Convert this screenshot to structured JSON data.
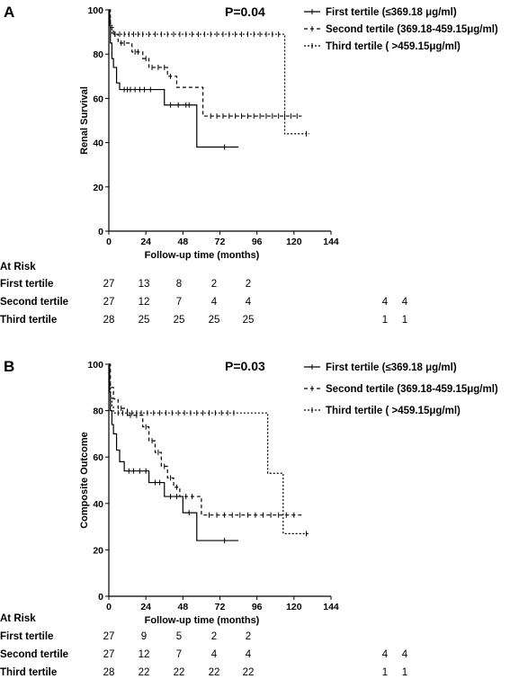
{
  "chart_data": [
    {
      "type": "line",
      "panel": "A",
      "annotation": "P=0.04",
      "xlabel": "Follow-up time  (months)",
      "ylabel": "Renal Survival",
      "xlim": [
        0,
        144
      ],
      "ylim": [
        0,
        100
      ],
      "xticks": [
        "0",
        "24",
        "48",
        "72",
        "96",
        "120",
        "144"
      ],
      "yticks": [
        "0",
        "20",
        "40",
        "60",
        "80",
        "100"
      ],
      "legend_placement": "top-right",
      "series": [
        {
          "name": "First tertile  (≤369.18 μg/ml)",
          "dash": "none",
          "steps": [
            [
              0,
              100
            ],
            [
              0.5,
              93
            ],
            [
              1,
              85
            ],
            [
              2,
              78
            ],
            [
              3,
              74
            ],
            [
              5,
              67
            ],
            [
              7,
              64
            ],
            [
              36,
              57
            ],
            [
              57,
              38
            ],
            [
              84,
              38
            ]
          ],
          "censors": [
            [
              10,
              64
            ],
            [
              12,
              64
            ],
            [
              14,
              64
            ],
            [
              17,
              64
            ],
            [
              20,
              64
            ],
            [
              23,
              64
            ],
            [
              27,
              64
            ],
            [
              40,
              57
            ],
            [
              45,
              57
            ],
            [
              50,
              57
            ],
            [
              52,
              57
            ],
            [
              75,
              38
            ]
          ]
        },
        {
          "name": "Second tertile (369.18-459.15μg/ml)",
          "dash": "4,3",
          "steps": [
            [
              0,
              100
            ],
            [
              1,
              92
            ],
            [
              3,
              89
            ],
            [
              6,
              85
            ],
            [
              15,
              81
            ],
            [
              22,
              78
            ],
            [
              26,
              74
            ],
            [
              38,
              70
            ],
            [
              44,
              65
            ],
            [
              61,
              52
            ],
            [
              125,
              52
            ]
          ],
          "censors": [
            [
              4,
              89
            ],
            [
              8,
              85
            ],
            [
              10,
              85
            ],
            [
              17,
              81
            ],
            [
              19,
              81
            ],
            [
              24,
              78
            ],
            [
              28,
              74
            ],
            [
              32,
              74
            ],
            [
              36,
              74
            ],
            [
              40,
              70
            ],
            [
              66,
              52
            ],
            [
              70,
              52
            ],
            [
              74,
              52
            ],
            [
              78,
              52
            ],
            [
              82,
              52
            ],
            [
              86,
              52
            ],
            [
              90,
              52
            ],
            [
              94,
              52
            ],
            [
              98,
              52
            ],
            [
              102,
              52
            ],
            [
              106,
              52
            ],
            [
              110,
              52
            ],
            [
              114,
              52
            ],
            [
              118,
              52
            ],
            [
              122,
              52
            ]
          ]
        },
        {
          "name": "Third tertile ( >459.15μg/ml)",
          "dash": "2,2",
          "steps": [
            [
              0,
              100
            ],
            [
              0.5,
              96
            ],
            [
              1,
              93
            ],
            [
              2,
              89
            ],
            [
              112,
              89
            ],
            [
              114,
              44
            ],
            [
              130,
              44
            ]
          ],
          "censors": [
            [
              4,
              89
            ],
            [
              7,
              89
            ],
            [
              10,
              89
            ],
            [
              13,
              89
            ],
            [
              16,
              89
            ],
            [
              19,
              89
            ],
            [
              22,
              89
            ],
            [
              26,
              89
            ],
            [
              30,
              89
            ],
            [
              34,
              89
            ],
            [
              38,
              89
            ],
            [
              42,
              89
            ],
            [
              46,
              89
            ],
            [
              50,
              89
            ],
            [
              54,
              89
            ],
            [
              58,
              89
            ],
            [
              62,
              89
            ],
            [
              66,
              89
            ],
            [
              70,
              89
            ],
            [
              74,
              89
            ],
            [
              78,
              89
            ],
            [
              82,
              89
            ],
            [
              86,
              89
            ],
            [
              90,
              89
            ],
            [
              94,
              89
            ],
            [
              98,
              89
            ],
            [
              102,
              89
            ],
            [
              106,
              89
            ],
            [
              110,
              89
            ],
            [
              128,
              44
            ]
          ]
        }
      ],
      "risk_table": {
        "title": "At Risk",
        "rows": [
          {
            "label": "First tertile",
            "values": [
              "27",
              "13",
              "8",
              "2",
              "2",
              "",
              ""
            ]
          },
          {
            "label": "Second tertile",
            "values": [
              "27",
              "12",
              "7",
              "4",
              "4",
              "4",
              "4"
            ]
          },
          {
            "label": "Third tertile",
            "values": [
              "28",
              "25",
              "25",
              "25",
              "25",
              "1",
              "1"
            ]
          }
        ]
      }
    },
    {
      "type": "line",
      "panel": "B",
      "annotation": "P=0.03",
      "xlabel": "Follow-up time  (months)",
      "ylabel": "Composite Outcome",
      "xlim": [
        0,
        144
      ],
      "ylim": [
        0,
        100
      ],
      "xticks": [
        "0",
        "24",
        "48",
        "72",
        "96",
        "120",
        "144"
      ],
      "yticks": [
        "0",
        "20",
        "40",
        "60",
        "80",
        "100"
      ],
      "legend_placement": "top-right",
      "series": [
        {
          "name": "First tertile  (≤369.18 μg/ml)",
          "dash": "none",
          "steps": [
            [
              0,
              100
            ],
            [
              0.5,
              88
            ],
            [
              1,
              80
            ],
            [
              2,
              74
            ],
            [
              3,
              70
            ],
            [
              5,
              63
            ],
            [
              7,
              58
            ],
            [
              10,
              54
            ],
            [
              26,
              49
            ],
            [
              36,
              43
            ],
            [
              48,
              36
            ],
            [
              57,
              24
            ],
            [
              84,
              24
            ]
          ],
          "censors": [
            [
              13,
              54
            ],
            [
              16,
              54
            ],
            [
              20,
              54
            ],
            [
              24,
              54
            ],
            [
              30,
              49
            ],
            [
              33,
              49
            ],
            [
              40,
              43
            ],
            [
              44,
              43
            ],
            [
              52,
              36
            ],
            [
              75,
              24
            ]
          ]
        },
        {
          "name": "Second tertile  (369.18-459.15μg/ml)",
          "dash": "4,3",
          "steps": [
            [
              0,
              100
            ],
            [
              1,
              90
            ],
            [
              3,
              85
            ],
            [
              6,
              81
            ],
            [
              12,
              78
            ],
            [
              22,
              73
            ],
            [
              26,
              67
            ],
            [
              30,
              62
            ],
            [
              34,
              56
            ],
            [
              38,
              51
            ],
            [
              42,
              47
            ],
            [
              46,
              43
            ],
            [
              60,
              35
            ],
            [
              125,
              35
            ]
          ],
          "censors": [
            [
              8,
              81
            ],
            [
              14,
              78
            ],
            [
              18,
              78
            ],
            [
              24,
              73
            ],
            [
              28,
              67
            ],
            [
              32,
              62
            ],
            [
              36,
              56
            ],
            [
              40,
              51
            ],
            [
              44,
              47
            ],
            [
              50,
              43
            ],
            [
              54,
              43
            ],
            [
              65,
              35
            ],
            [
              70,
              35
            ],
            [
              75,
              35
            ],
            [
              80,
              35
            ],
            [
              85,
              35
            ],
            [
              90,
              35
            ],
            [
              95,
              35
            ],
            [
              100,
              35
            ],
            [
              105,
              35
            ],
            [
              110,
              35
            ],
            [
              115,
              35
            ],
            [
              120,
              35
            ]
          ]
        },
        {
          "name": "Third tertile ( >459.15μg/ml)",
          "dash": "2,2",
          "steps": [
            [
              0,
              100
            ],
            [
              0.5,
              92
            ],
            [
              1,
              86
            ],
            [
              2,
              82
            ],
            [
              3,
              79
            ],
            [
              102,
              79
            ],
            [
              103,
              53
            ],
            [
              112,
              53
            ],
            [
              113,
              27
            ],
            [
              130,
              27
            ]
          ],
          "censors": [
            [
              6,
              79
            ],
            [
              9,
              79
            ],
            [
              12,
              79
            ],
            [
              15,
              79
            ],
            [
              18,
              79
            ],
            [
              21,
              79
            ],
            [
              25,
              79
            ],
            [
              29,
              79
            ],
            [
              33,
              79
            ],
            [
              37,
              79
            ],
            [
              41,
              79
            ],
            [
              45,
              79
            ],
            [
              49,
              79
            ],
            [
              53,
              79
            ],
            [
              57,
              79
            ],
            [
              61,
              79
            ],
            [
              65,
              79
            ],
            [
              69,
              79
            ],
            [
              73,
              79
            ],
            [
              77,
              79
            ],
            [
              81,
              79
            ],
            [
              128,
              27
            ]
          ]
        }
      ],
      "risk_table": {
        "title": "At Risk",
        "rows": [
          {
            "label": "First tertile",
            "values": [
              "27",
              "9",
              "5",
              "2",
              "2",
              "",
              ""
            ]
          },
          {
            "label": "Second tertile",
            "values": [
              "27",
              "12",
              "7",
              "4",
              "4",
              "4",
              "4"
            ]
          },
          {
            "label": "Third tertile",
            "values": [
              "28",
              "22",
              "22",
              "22",
              "22",
              "1",
              "1"
            ]
          }
        ]
      }
    }
  ]
}
